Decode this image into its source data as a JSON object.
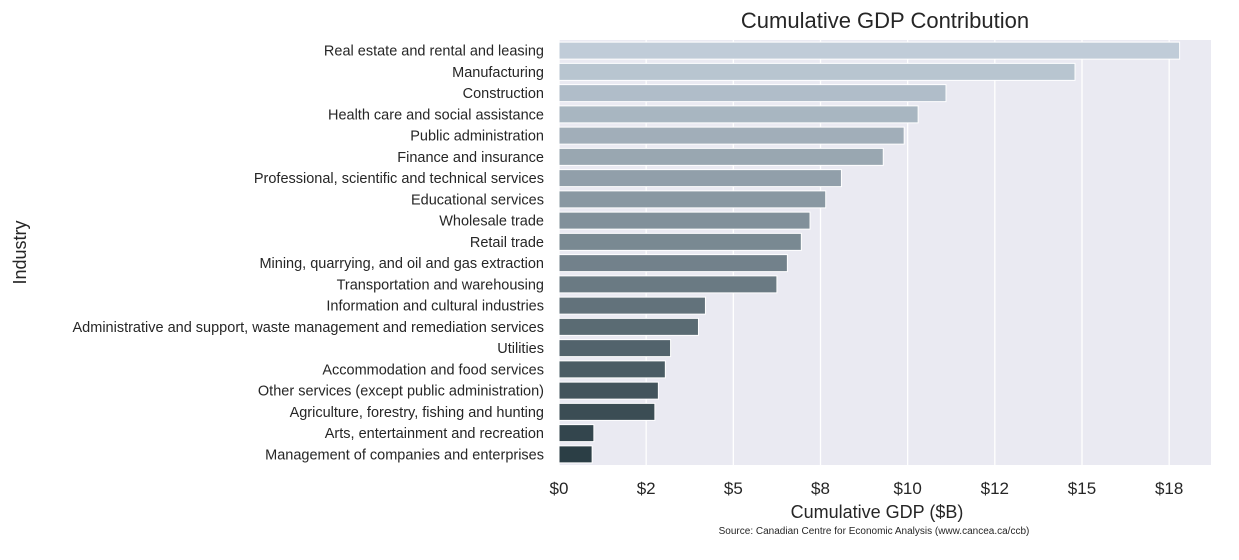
{
  "chart_data": {
    "type": "bar",
    "orientation": "horizontal",
    "title": "Cumulative GDP Contribution",
    "xlabel": "Cumulative GDP ($B)",
    "ylabel": "Industry",
    "source": "Source: Canadian Centre for Economic Analysis (www.cancea.ca/ccb)",
    "categories": [
      "Real estate and rental and leasing",
      "Manufacturing",
      "Construction",
      "Health care and social assistance",
      "Public administration",
      "Finance and insurance",
      "Professional, scientific and technical services",
      "Educational services",
      "Wholesale trade",
      "Retail trade",
      "Mining, quarrying, and oil and gas extraction",
      "Transportation and warehousing",
      "Information and cultural industries",
      "Administrative and support, waste management and remediation services",
      "Utilities",
      "Accommodation and food services",
      "Other services (except public administration)",
      "Agriculture, forestry, fishing and hunting",
      "Arts, entertainment and recreation",
      "Management of companies and enterprises"
    ],
    "values": [
      17.8,
      14.8,
      11.1,
      10.3,
      9.9,
      9.3,
      8.1,
      7.65,
      7.2,
      6.95,
      6.55,
      6.25,
      4.2,
      4.0,
      3.2,
      3.05,
      2.85,
      2.75,
      1.0,
      0.95
    ],
    "xlim": [
      0,
      18.7
    ],
    "xticks": [
      0,
      2.5,
      5,
      7.5,
      10,
      12.5,
      15,
      17.5
    ],
    "xtick_labels": [
      "$0",
      "$2",
      "$5",
      "$8",
      "$10",
      "$12",
      "$15",
      "$18"
    ],
    "grid": true,
    "colors": {
      "plot_background": "#eaeaf2",
      "grid": "#ffffff",
      "bar_start": "#c0ccd8",
      "bar_end": "#2b3e45"
    }
  }
}
